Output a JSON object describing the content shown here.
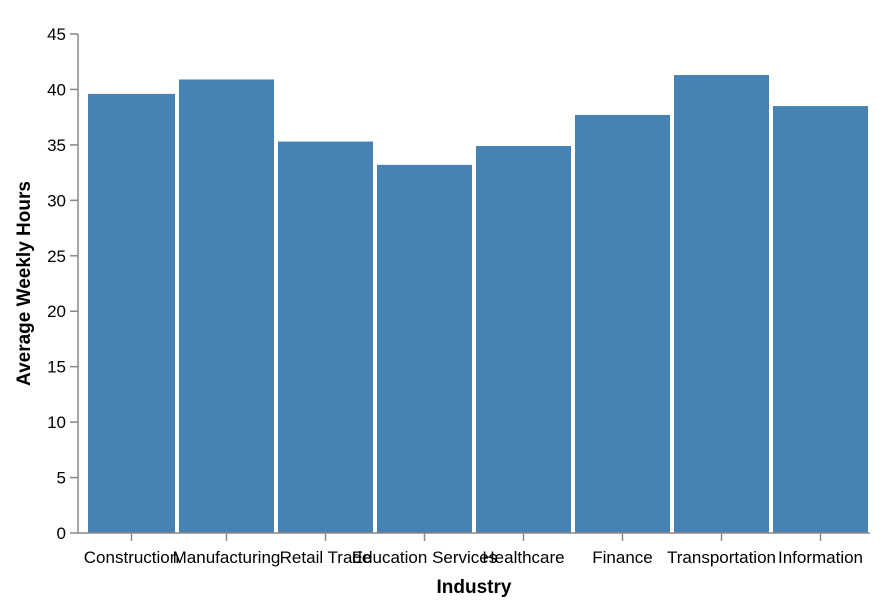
{
  "chart_data": {
    "type": "bar",
    "categories": [
      "Construction",
      "Manufacturing",
      "Retail Trade",
      "Education Services",
      "Healthcare",
      "Finance",
      "Transportation",
      "Information"
    ],
    "values": [
      39.6,
      40.9,
      35.3,
      33.2,
      34.9,
      37.7,
      41.3,
      38.5
    ],
    "xlabel": "Industry",
    "ylabel": "Average Weekly Hours",
    "ylim": [
      0,
      45
    ],
    "yticks": [
      0,
      5,
      10,
      15,
      20,
      25,
      30,
      35,
      40,
      45
    ],
    "grid": false,
    "bar_color": "#4682b4"
  }
}
